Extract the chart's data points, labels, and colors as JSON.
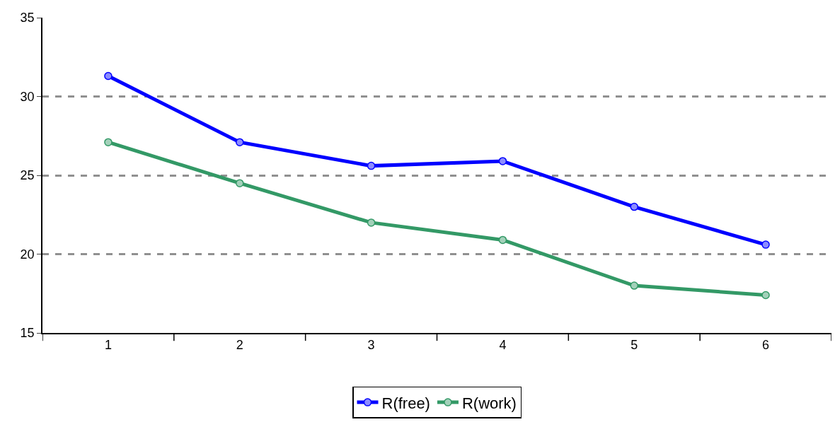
{
  "chart_data": {
    "type": "line",
    "categories": [
      "1",
      "2",
      "3",
      "4",
      "5",
      "6"
    ],
    "series": [
      {
        "name": "R(free)",
        "color": "#0000ff",
        "values": [
          31.3,
          27.1,
          25.6,
          25.9,
          23.0,
          20.6
        ]
      },
      {
        "name": "R(work)",
        "color": "#339966",
        "values": [
          27.1,
          24.5,
          22.0,
          20.9,
          18.0,
          17.4
        ]
      }
    ],
    "ylim": [
      15,
      35
    ],
    "yticks": [
      15,
      20,
      25,
      30,
      35
    ],
    "grid": "y",
    "legend": "bottom",
    "marker": "circle",
    "line_style": "solid"
  }
}
